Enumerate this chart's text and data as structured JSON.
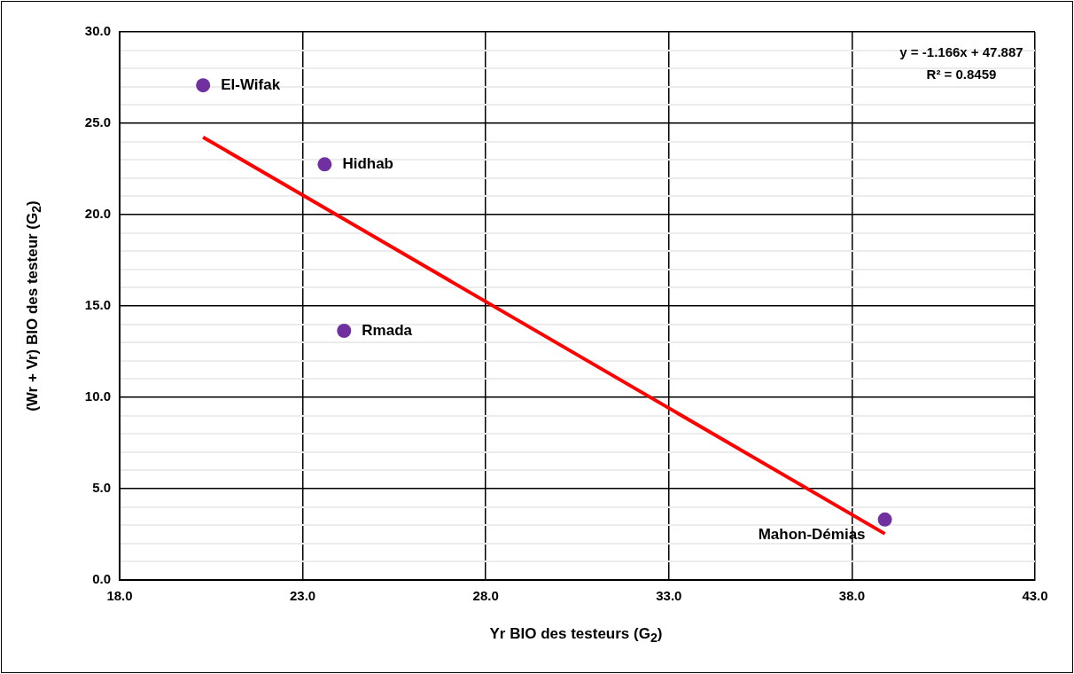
{
  "chart_data": {
    "type": "scatter",
    "xlabel": "Yr BIO des testeurs (G$_{2}$)",
    "ylabel": "(Wr + Vr) BIO des testeur (G$_{2}$)",
    "xlim": [
      18,
      43
    ],
    "xticks": [
      {
        "value": 18,
        "label": "18.0"
      },
      {
        "value": 23,
        "label": "23.0"
      },
      {
        "value": 28,
        "label": "28.0"
      },
      {
        "value": 33,
        "label": "33.0"
      },
      {
        "value": 38,
        "label": "38.0"
      },
      {
        "value": 43,
        "label": "43.0"
      }
    ],
    "ylim": [
      0,
      30
    ],
    "yticks": [
      {
        "value": 0,
        "label": "0.0"
      },
      {
        "value": 1,
        "label": null
      },
      {
        "value": 2,
        "label": null
      },
      {
        "value": 3,
        "label": null
      },
      {
        "value": 4,
        "label": null
      },
      {
        "value": 5,
        "label": "5.0"
      },
      {
        "value": 6,
        "label": null
      },
      {
        "value": 7,
        "label": null
      },
      {
        "value": 8,
        "label": null
      },
      {
        "value": 9,
        "label": null
      },
      {
        "value": 10,
        "label": "10.0"
      },
      {
        "value": 11,
        "label": null
      },
      {
        "value": 12,
        "label": null
      },
      {
        "value": 13,
        "label": null
      },
      {
        "value": 14,
        "label": null
      },
      {
        "value": 15,
        "label": "15.0"
      },
      {
        "value": 16,
        "label": null
      },
      {
        "value": 17,
        "label": null
      },
      {
        "value": 18,
        "label": null
      },
      {
        "value": 19,
        "label": null
      },
      {
        "value": 20,
        "label": "20.0"
      },
      {
        "value": 21,
        "label": null
      },
      {
        "value": 22,
        "label": null
      },
      {
        "value": 23,
        "label": null
      },
      {
        "value": 24,
        "label": null
      },
      {
        "value": 25,
        "label": "25.0"
      },
      {
        "value": 26,
        "label": null
      },
      {
        "value": 27,
        "label": null
      },
      {
        "value": 28,
        "label": null
      },
      {
        "value": 29,
        "label": null
      },
      {
        "value": 30,
        "label": "30.0"
      }
    ],
    "grid": true,
    "legend": false,
    "series": [
      {
        "marker": "circle",
        "color": "#7030a0",
        "x": [
          20.28,
          23.6,
          24.13,
          38.9
        ],
        "values": [
          27.08,
          22.75,
          13.64,
          3.31
        ]
      },
      {
        "type": "line",
        "marker": "none",
        "color": "#ff0000",
        "x": [
          20.28,
          38.9
        ],
        "values": [
          24.24,
          2.53
        ]
      }
    ],
    "annotations": [
      {
        "text": "El-Wifak",
        "x": 20.28,
        "y": 27.08
      },
      {
        "text": "Hidhab",
        "x": 23.6,
        "y": 22.75
      },
      {
        "text": "Rmada",
        "x": 24.13,
        "y": 13.64
      },
      {
        "text": "Mahon-Démias",
        "x": 38.9,
        "y": 3.31
      },
      "y = -1.166x + 47.887",
      "R² = 0.8459"
    ]
  }
}
